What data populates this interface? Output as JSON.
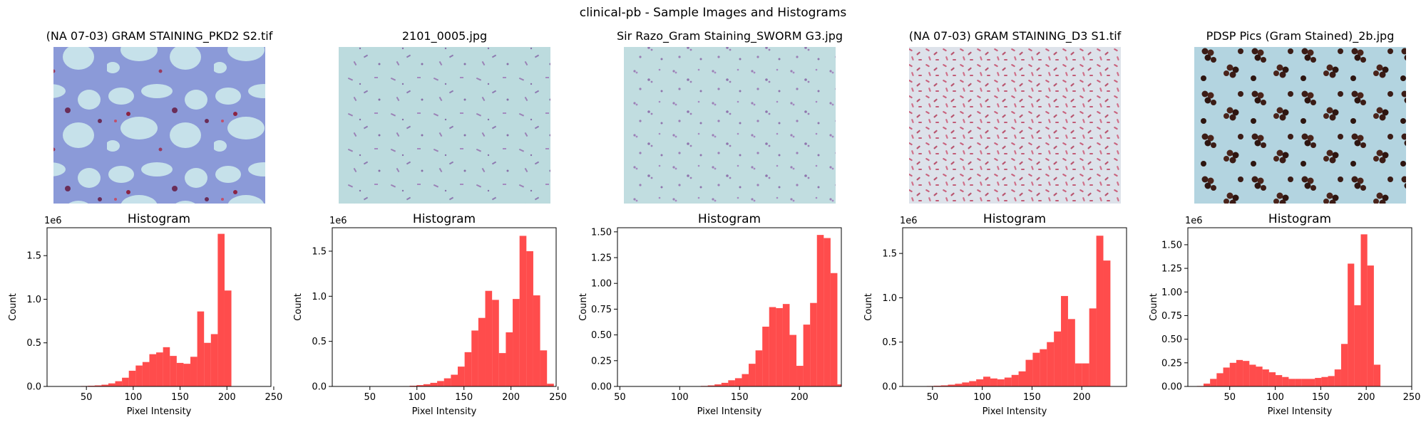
{
  "figure": {
    "title": "clinical-pb - Sample Images and Histograms"
  },
  "colors": {
    "bar": "#ff0000",
    "bar_opacity": 0.7,
    "axis": "#000000"
  },
  "chart_data": [
    {
      "type": "bar",
      "image_title": "(NA 07-03) GRAM STAINING_PKD2 S2.tif",
      "image_style": "lung-tissue-blue-purple",
      "title": "Histogram",
      "xlabel": "Pixel Intensity",
      "ylabel": "Count",
      "offset_label": "1e6",
      "xlim": [
        8,
        247
      ],
      "ylim": [
        0,
        1.82
      ],
      "xticks": [
        50,
        100,
        150,
        200,
        250
      ],
      "yticks": [
        0,
        0.5,
        1.0,
        1.5
      ],
      "ytick_labels": [
        "0.0",
        "0.5",
        "1.0",
        "1.5"
      ],
      "bin_start": 15,
      "bin_width": 7.3,
      "values": [
        0,
        0,
        0,
        0.003,
        0.005,
        0.008,
        0.012,
        0.02,
        0.035,
        0.06,
        0.1,
        0.18,
        0.24,
        0.28,
        0.37,
        0.39,
        0.45,
        0.35,
        0.27,
        0.26,
        0.34,
        0.86,
        0.5,
        0.6,
        1.75,
        1.1
      ]
    },
    {
      "type": "bar",
      "image_title": "2101_0005.jpg",
      "image_style": "pale-cyan-purple-specks",
      "title": "Histogram",
      "xlabel": "Pixel Intensity",
      "ylabel": "Count",
      "offset_label": "1e6",
      "xlim": [
        10,
        248
      ],
      "ylim": [
        0,
        1.76
      ],
      "xticks": [
        50,
        100,
        150,
        200,
        250
      ],
      "yticks": [
        0,
        0.5,
        1.0,
        1.5
      ],
      "ytick_labels": [
        "0.0",
        "0.5",
        "1.0",
        "1.5"
      ],
      "bin_start": 85,
      "bin_width": 7.3,
      "values": [
        0.004,
        0.008,
        0.015,
        0.025,
        0.04,
        0.06,
        0.09,
        0.13,
        0.22,
        0.38,
        0.62,
        0.76,
        1.06,
        0.96,
        0.37,
        0.6,
        0.97,
        1.67,
        1.5,
        1.01,
        0.4,
        0.03
      ]
    },
    {
      "type": "bar",
      "image_title": "Sir Razo_Gram Staining_SWORM G3.jpg",
      "image_style": "pale-cyan-purple-clusters",
      "title": "Histogram",
      "xlabel": "Pixel Intensity",
      "ylabel": "Count",
      "offset_label": "",
      "xlim": [
        48,
        235
      ],
      "ylim": [
        0,
        1.54
      ],
      "xticks": [
        50,
        100,
        150,
        200
      ],
      "yticks": [
        0,
        0.25,
        0.5,
        0.75,
        1.0,
        1.25,
        1.5
      ],
      "ytick_labels": [
        "0.00",
        "0.25",
        "0.50",
        "0.75",
        "1.00",
        "1.25",
        "1.50"
      ],
      "bin_start": 112,
      "bin_width": 5.7,
      "values": [
        0.002,
        0.005,
        0.01,
        0.02,
        0.035,
        0.06,
        0.08,
        0.12,
        0.22,
        0.35,
        0.58,
        0.77,
        0.76,
        0.8,
        0.5,
        0.2,
        0.6,
        0.81,
        1.47,
        1.44,
        1.1,
        0.02
      ]
    },
    {
      "type": "bar",
      "image_title": "(NA 07-03) GRAM STAINING_D3 S1.tif",
      "image_style": "dense-pink-rods",
      "title": "Histogram",
      "xlabel": "Pixel Intensity",
      "ylabel": "Count",
      "offset_label": "1e6",
      "xlim": [
        20,
        245
      ],
      "ylim": [
        0,
        1.79
      ],
      "xticks": [
        50,
        100,
        150,
        200
      ],
      "yticks": [
        0,
        0.5,
        1.0,
        1.5
      ],
      "ytick_labels": [
        "0.0",
        "0.5",
        "1.0",
        "1.5"
      ],
      "bin_start": 30,
      "bin_width": 7.1,
      "values": [
        0,
        0.003,
        0.005,
        0.008,
        0.012,
        0.02,
        0.03,
        0.045,
        0.06,
        0.08,
        0.11,
        0.09,
        0.08,
        0.1,
        0.13,
        0.17,
        0.3,
        0.38,
        0.42,
        0.5,
        0.62,
        1.02,
        0.76,
        0.26,
        0.26,
        0.88,
        1.7,
        1.42,
        0
      ]
    },
    {
      "type": "bar",
      "image_title": "PDSP Pics (Gram Stained)_2b.jpg",
      "image_style": "dark-brown-cocci",
      "title": "Histogram",
      "xlabel": "Pixel Intensity",
      "ylabel": "Count",
      "offset_label": "1e6",
      "xlim": [
        4,
        250
      ],
      "ylim": [
        0,
        1.68
      ],
      "xticks": [
        50,
        100,
        150,
        200,
        250
      ],
      "yticks": [
        0,
        0.25,
        0.5,
        0.75,
        1.0,
        1.25,
        1.5
      ],
      "ytick_labels": [
        "0.00",
        "0.25",
        "0.50",
        "0.75",
        "1.00",
        "1.25",
        "1.50"
      ],
      "bin_start": 14,
      "bin_width": 7.2,
      "values": [
        0.005,
        0.03,
        0.08,
        0.14,
        0.2,
        0.25,
        0.28,
        0.27,
        0.23,
        0.21,
        0.18,
        0.15,
        0.12,
        0.1,
        0.08,
        0.08,
        0.08,
        0.08,
        0.09,
        0.1,
        0.11,
        0.18,
        0.45,
        1.3,
        0.86,
        1.61,
        1.28,
        0.23
      ]
    }
  ]
}
